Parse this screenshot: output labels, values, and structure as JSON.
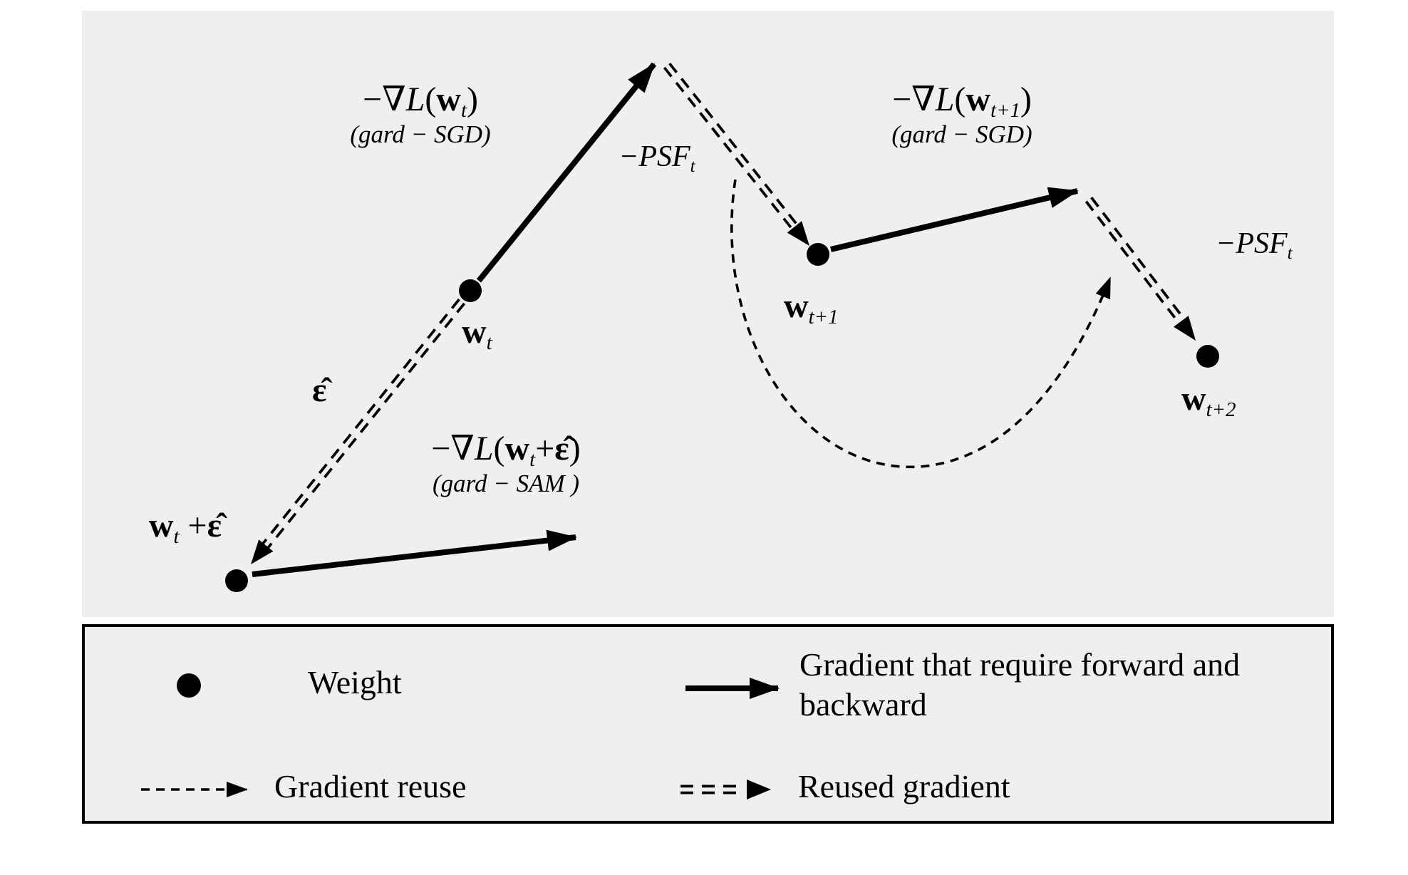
{
  "colors": {
    "panel_bg": "#f0eff0",
    "ink": "#000000",
    "page_bg": "#ffffff"
  },
  "figure": {
    "labels": {
      "grad_sgd_t": {
        "main": [
          {
            "t": "−∇"
          },
          {
            "t": "L",
            "i": true
          },
          {
            "t": "("
          },
          {
            "t": "w",
            "b": true
          },
          {
            "t": "t",
            "s": true,
            "i": true
          },
          {
            "t": ")"
          }
        ],
        "caption": "(gard − SGD)"
      },
      "psf_t_left": [
        {
          "t": "−PSF",
          "i": true
        },
        {
          "t": "t",
          "s": true,
          "i": true
        }
      ],
      "grad_sgd_t1": {
        "main": [
          {
            "t": "−∇"
          },
          {
            "t": "L",
            "i": true
          },
          {
            "t": "("
          },
          {
            "t": "w",
            "b": true
          },
          {
            "t": "t+1",
            "s": true,
            "i": true
          },
          {
            "t": ")"
          }
        ],
        "caption": "(gard − SGD)"
      },
      "psf_t_right": [
        {
          "t": "−PSF",
          "i": true
        },
        {
          "t": "t",
          "s": true,
          "i": true
        }
      ],
      "grad_sam": {
        "main": [
          {
            "t": "−∇"
          },
          {
            "t": "L",
            "i": true
          },
          {
            "t": "("
          },
          {
            "t": "w",
            "b": true
          },
          {
            "t": "t",
            "s": true,
            "i": true
          },
          {
            "t": "+"
          },
          {
            "t": "ε̂",
            "b": true
          },
          {
            "t": ")"
          }
        ],
        "caption": "(gard − SAM )"
      },
      "epsilon": [
        {
          "t": "ε̂",
          "b": true
        }
      ],
      "w_t": [
        {
          "t": "w",
          "b": true
        },
        {
          "t": "t",
          "s": true,
          "i": true
        }
      ],
      "w_t_eps": [
        {
          "t": "w",
          "b": true
        },
        {
          "t": "t",
          "s": true,
          "i": true
        },
        {
          "t": " +"
        },
        {
          "t": "ε̂",
          "b": true
        }
      ],
      "w_t1": [
        {
          "t": "w",
          "b": true
        },
        {
          "t": "t+1",
          "s": true,
          "i": true
        }
      ],
      "w_t2": [
        {
          "t": "w",
          "b": true
        },
        {
          "t": "t+2",
          "s": true,
          "i": true
        }
      ]
    }
  },
  "legend": {
    "weight": "Weight",
    "solid_gradient": "Gradient that require forward and backward",
    "gradient_reuse": "Gradient reuse",
    "reused_gradient": "Reused gradient"
  }
}
